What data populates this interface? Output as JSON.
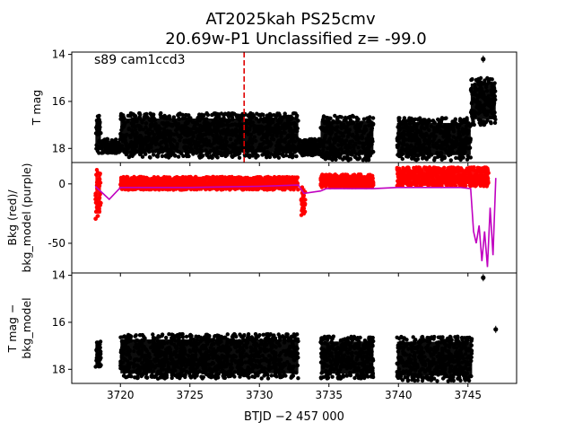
{
  "figure": {
    "title_line1": "AT2025kah  PS25cmv",
    "title_line2": "20.69w-P1 Unclassified z= -99.0"
  },
  "chart_data": [
    {
      "type": "scatter",
      "panel": "top",
      "ylabel": "T mag",
      "annotation": "s89 cam1ccd3",
      "xlim": [
        3716.5,
        3748.5
      ],
      "ylim": [
        18.6,
        13.9
      ],
      "y_inverted": true,
      "yticks": [
        14,
        16,
        18
      ],
      "vline": {
        "x": 3728.9,
        "color": "#e00000",
        "style": "dashed"
      },
      "series": [
        {
          "color": "#000000",
          "segments": [
            {
              "x_start": 3718.2,
              "x_end": 3718.6,
              "y_low": 16.6,
              "y_high": 18.2
            },
            {
              "x_start": 3718.6,
              "x_end": 3720.0,
              "y_low": 17.6,
              "y_high": 18.2
            },
            {
              "x_start": 3720.0,
              "x_end": 3732.8,
              "y_low": 16.5,
              "y_high": 18.4
            },
            {
              "x_start": 3732.8,
              "x_end": 3734.4,
              "y_low": 17.6,
              "y_high": 18.3
            },
            {
              "x_start": 3734.4,
              "x_end": 3738.2,
              "y_low": 16.6,
              "y_high": 18.5
            },
            {
              "x_start": 3739.9,
              "x_end": 3745.2,
              "y_low": 16.7,
              "y_high": 18.5
            },
            {
              "x_start": 3745.2,
              "x_end": 3747.0,
              "y_low": 15.0,
              "y_high": 17.0
            }
          ],
          "outliers": [
            [
              3746.1,
              14.2
            ]
          ]
        }
      ]
    },
    {
      "type": "scatter",
      "panel": "middle",
      "ylabel": "Bkg (red)/\nbkg_model (purple)",
      "xlim": [
        3716.5,
        3748.5
      ],
      "ylim": [
        -75,
        18
      ],
      "yticks": [
        0,
        -50
      ],
      "series": [
        {
          "name": "Bkg",
          "color": "#ff0000",
          "segments": [
            {
              "x_start": 3718.2,
              "x_end": 3718.6,
              "y_low": -30,
              "y_high": 12
            },
            {
              "x_start": 3720.0,
              "x_end": 3732.8,
              "y_low": -5,
              "y_high": 6
            },
            {
              "x_start": 3733.0,
              "x_end": 3733.3,
              "y_low": -30,
              "y_high": 0
            },
            {
              "x_start": 3734.4,
              "x_end": 3738.2,
              "y_low": -3,
              "y_high": 8
            },
            {
              "x_start": 3739.9,
              "x_end": 3746.5,
              "y_low": -2,
              "y_high": 14
            }
          ]
        },
        {
          "name": "bkg_model",
          "color": "#c000c0",
          "points": [
            [
              3718.2,
              -2
            ],
            [
              3719.2,
              -13
            ],
            [
              3720.0,
              -3
            ],
            [
              3721.0,
              -3
            ],
            [
              3725.0,
              -3
            ],
            [
              3730.0,
              -2
            ],
            [
              3732.8,
              -1
            ],
            [
              3733.2,
              -8
            ],
            [
              3734.4,
              -6
            ],
            [
              3734.8,
              -4
            ],
            [
              3738.2,
              -4
            ],
            [
              3739.9,
              -3
            ],
            [
              3744.5,
              -3
            ],
            [
              3745.2,
              -4
            ],
            [
              3745.4,
              -40
            ],
            [
              3745.6,
              -50
            ],
            [
              3745.8,
              -35
            ],
            [
              3746.0,
              -65
            ],
            [
              3746.2,
              -40
            ],
            [
              3746.4,
              -70
            ],
            [
              3746.6,
              -20
            ],
            [
              3746.8,
              -60
            ],
            [
              3747.0,
              5
            ]
          ]
        }
      ]
    },
    {
      "type": "scatter",
      "panel": "bottom",
      "ylabel": "T mag −\nbkg_model",
      "xlabel": "BTJD −2 457 000",
      "xlim": [
        3716.5,
        3748.5
      ],
      "ylim": [
        18.6,
        13.9
      ],
      "y_inverted": true,
      "xticks": [
        3720,
        3725,
        3730,
        3735,
        3740,
        3745
      ],
      "yticks": [
        14,
        16,
        18
      ],
      "series": [
        {
          "color": "#000000",
          "segments": [
            {
              "x_start": 3718.2,
              "x_end": 3718.6,
              "y_low": 16.8,
              "y_high": 18.0
            },
            {
              "x_start": 3720.0,
              "x_end": 3732.8,
              "y_low": 16.5,
              "y_high": 18.4
            },
            {
              "x_start": 3734.4,
              "x_end": 3738.2,
              "y_low": 16.6,
              "y_high": 18.4
            },
            {
              "x_start": 3739.9,
              "x_end": 3745.3,
              "y_low": 16.6,
              "y_high": 18.5
            }
          ],
          "outliers": [
            [
              3746.1,
              14.1
            ],
            [
              3747.0,
              16.3
            ]
          ]
        }
      ]
    }
  ]
}
